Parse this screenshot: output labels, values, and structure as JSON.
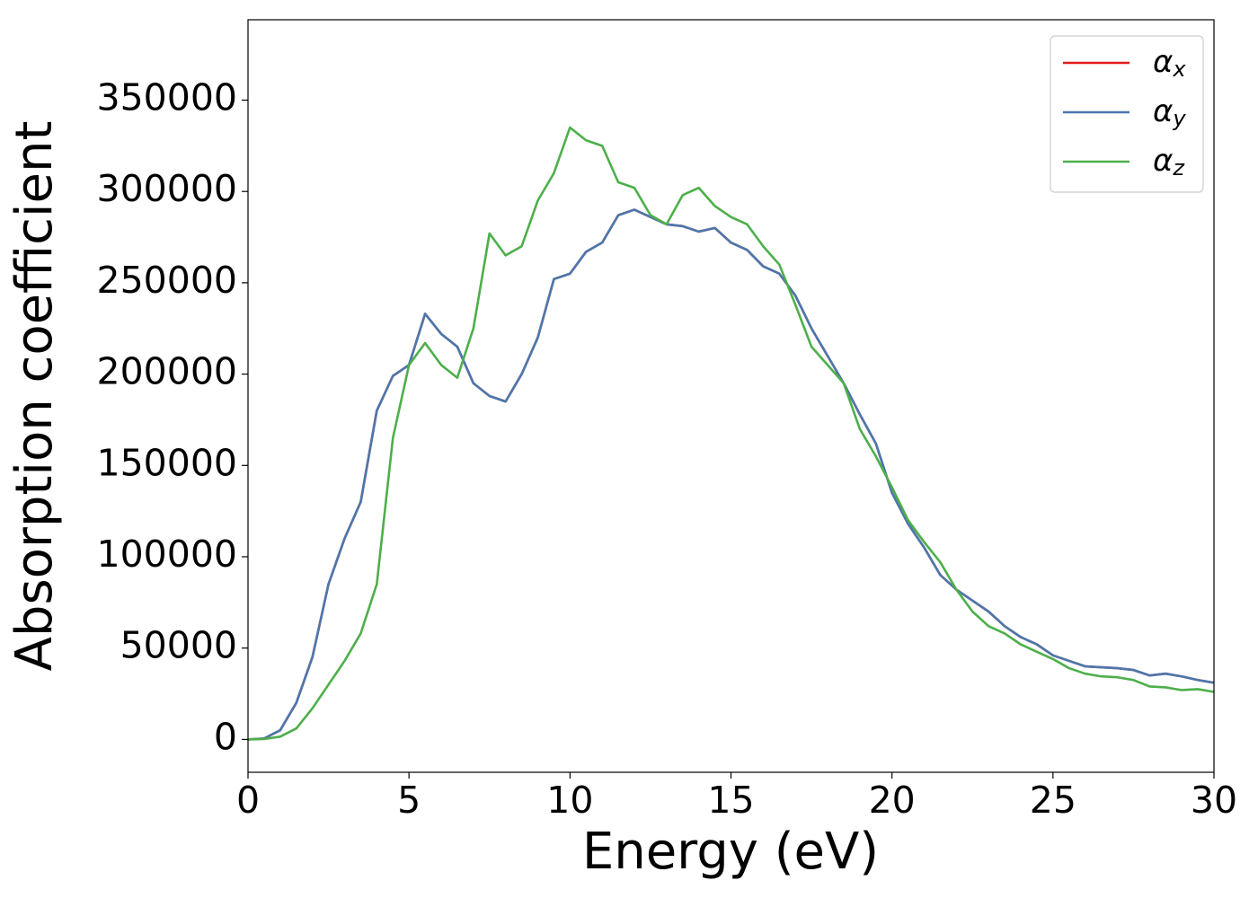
{
  "chart_data": {
    "type": "line",
    "xlabel": "Energy (eV)",
    "ylabel": "Absorption coefficient",
    "x": [
      0,
      0.5,
      1,
      1.5,
      2,
      2.5,
      3,
      3.5,
      4,
      4.5,
      5,
      5.5,
      6,
      6.5,
      7,
      7.5,
      8,
      8.5,
      9,
      9.5,
      10,
      10.5,
      11,
      11.5,
      12,
      12.5,
      13,
      13.5,
      14,
      14.5,
      15,
      15.5,
      16,
      16.5,
      17,
      17.5,
      18,
      18.5,
      19,
      19.5,
      20,
      20.5,
      21,
      21.5,
      22,
      22.5,
      23,
      23.5,
      24,
      24.5,
      25,
      25.5,
      26,
      26.5,
      27,
      27.5,
      28,
      28.5,
      29,
      29.5,
      30
    ],
    "series": [
      {
        "name": "αx",
        "color": "#e41a1c",
        "values": [
          0,
          500,
          5000,
          20000,
          45000,
          85000,
          110000,
          130000,
          180000,
          199000,
          205000,
          233000,
          222000,
          215000,
          195000,
          188000,
          185000,
          200000,
          220000,
          252000,
          255000,
          267000,
          272000,
          287000,
          290000,
          286000,
          282000,
          281000,
          278000,
          280000,
          272000,
          268000,
          259000,
          255000,
          243000,
          225000,
          210000,
          195000,
          178000,
          162000,
          135000,
          118000,
          105000,
          90000,
          82000,
          76000,
          70000,
          62000,
          56000,
          52000,
          46000,
          43000,
          40000,
          39500,
          39000,
          38000,
          35000,
          36000,
          34500,
          32500,
          31000
        ]
      },
      {
        "name": "αy",
        "color": "#4a78ad",
        "values": [
          0,
          500,
          5000,
          20000,
          45000,
          85000,
          110000,
          130000,
          180000,
          199000,
          205000,
          233000,
          222000,
          215000,
          195000,
          188000,
          185000,
          200000,
          220000,
          252000,
          255000,
          267000,
          272000,
          287000,
          290000,
          286000,
          282000,
          281000,
          278000,
          280000,
          272000,
          268000,
          259000,
          255000,
          243000,
          225000,
          210000,
          195000,
          178000,
          162000,
          135000,
          118000,
          105000,
          90000,
          82000,
          76000,
          70000,
          62000,
          56000,
          52000,
          46000,
          43000,
          40000,
          39500,
          39000,
          38000,
          35000,
          36000,
          34500,
          32500,
          31000
        ]
      },
      {
        "name": "αz",
        "color": "#4daf4a",
        "values": [
          0,
          200,
          1500,
          6000,
          17000,
          30000,
          43000,
          58000,
          85000,
          165000,
          205000,
          217000,
          205000,
          198000,
          225000,
          277000,
          265000,
          270000,
          295000,
          310000,
          335000,
          328000,
          325000,
          305000,
          302000,
          287000,
          282000,
          298000,
          302000,
          292000,
          286000,
          282000,
          270000,
          260000,
          238000,
          215000,
          205000,
          195000,
          170000,
          155000,
          138000,
          120000,
          108000,
          97000,
          82000,
          70000,
          62000,
          58000,
          52000,
          48000,
          44000,
          39000,
          36000,
          34500,
          34000,
          32500,
          29000,
          28500,
          27000,
          27500,
          26000
        ]
      }
    ],
    "xlim": [
      0,
      30
    ],
    "xticks": [
      0,
      5,
      10,
      15,
      20,
      25,
      30
    ],
    "ylim": [
      -18000,
      394000
    ],
    "yticks": [
      0,
      50000,
      100000,
      150000,
      200000,
      250000,
      300000,
      350000
    ],
    "legend": "upper right",
    "grid": false
  }
}
